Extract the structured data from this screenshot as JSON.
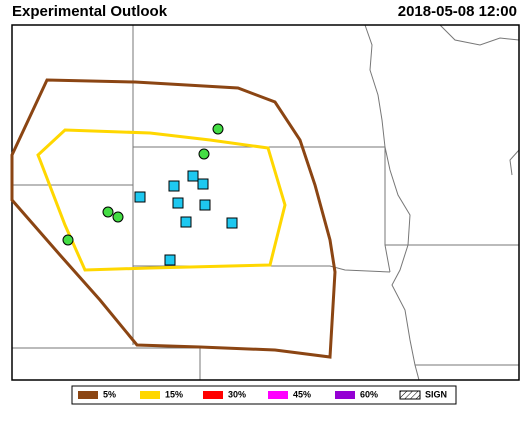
{
  "header": {
    "title": "Experimental Outlook",
    "timestamp": "2018-05-08 12:00"
  },
  "legend": {
    "items": [
      {
        "label": "5%",
        "color": "#8b4513"
      },
      {
        "label": "15%",
        "color": "#ffd700"
      },
      {
        "label": "30%",
        "color": "#ff0000"
      },
      {
        "label": "45%",
        "color": "#ff00ff"
      },
      {
        "label": "60%",
        "color": "#9400d3"
      },
      {
        "label": "SIGN"
      }
    ]
  }
}
